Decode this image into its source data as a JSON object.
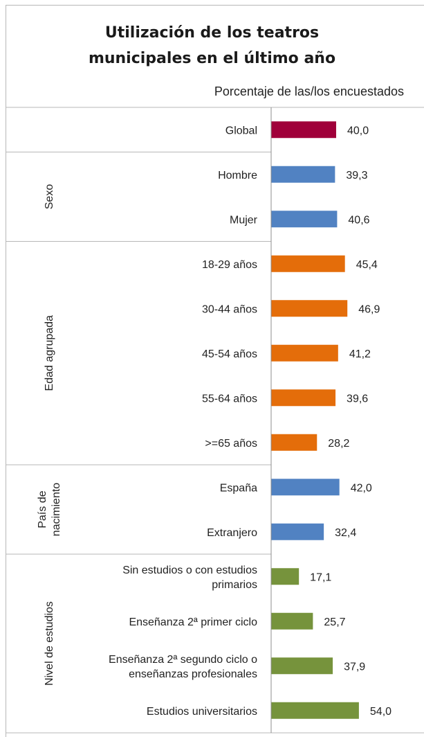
{
  "chart_data": {
    "type": "bar",
    "orientation": "horizontal",
    "title_lines": [
      "Utilización de los teatros",
      "municipales en el último año"
    ],
    "subtitle": "Porcentaje de las/los encuestados",
    "groups": [
      {
        "label_lines": [],
        "color": "#a0003a",
        "items": [
          {
            "label": [
              "Global"
            ],
            "value": 40.0,
            "value_label": "40,0"
          }
        ]
      },
      {
        "label_lines": [
          "Sexo"
        ],
        "color": "#5182c2",
        "items": [
          {
            "label": [
              "Hombre"
            ],
            "value": 39.3,
            "value_label": "39,3"
          },
          {
            "label": [
              "Mujer"
            ],
            "value": 40.6,
            "value_label": "40,6"
          }
        ]
      },
      {
        "label_lines": [
          "Edad agrupada"
        ],
        "color": "#e46d0a",
        "items": [
          {
            "label": [
              "18-29 años"
            ],
            "value": 45.4,
            "value_label": "45,4"
          },
          {
            "label": [
              "30-44 años"
            ],
            "value": 46.9,
            "value_label": "46,9"
          },
          {
            "label": [
              "45-54 años"
            ],
            "value": 41.2,
            "value_label": "41,2"
          },
          {
            "label": [
              "55-64 años"
            ],
            "value": 39.6,
            "value_label": "39,6"
          },
          {
            "label": [
              ">=65 años"
            ],
            "value": 28.2,
            "value_label": "28,2"
          }
        ]
      },
      {
        "label_lines": [
          "País de",
          "nacimiento"
        ],
        "color": "#5182c2",
        "items": [
          {
            "label": [
              "España"
            ],
            "value": 42.0,
            "value_label": "42,0"
          },
          {
            "label": [
              "Extranjero"
            ],
            "value": 32.4,
            "value_label": "32,4"
          }
        ]
      },
      {
        "label_lines": [
          "Nivel de estudios"
        ],
        "color": "#76933c",
        "items": [
          {
            "label": [
              "Sin estudios o con estudios",
              "primarios"
            ],
            "value": 17.1,
            "value_label": "17,1"
          },
          {
            "label": [
              "Enseñanza 2ª primer ciclo"
            ],
            "value": 25.7,
            "value_label": "25,7"
          },
          {
            "label": [
              "Enseñanza 2ª segundo ciclo o",
              "enseñanzas profesionales"
            ],
            "value": 37.9,
            "value_label": "37,9"
          },
          {
            "label": [
              "Estudios universitarios"
            ],
            "value": 54.0,
            "value_label": "54,0"
          }
        ]
      }
    ]
  }
}
